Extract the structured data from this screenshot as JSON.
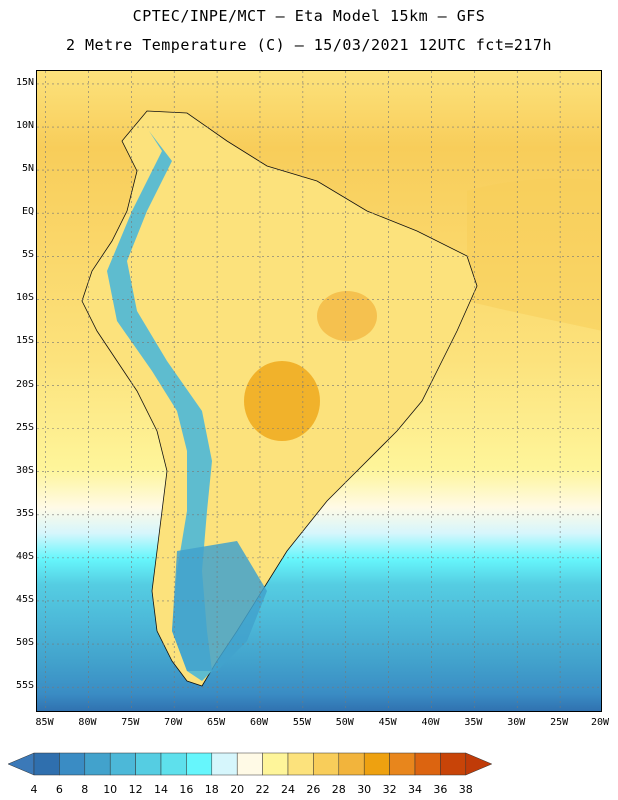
{
  "header": {
    "title_line1": "CPTEC/INPE/MCT –  Eta Model 15km – GFS",
    "title_line2": "2 Metre Temperature (C) – 15/03/2021 12UTC fct=217h"
  },
  "map": {
    "lat_labels": [
      "15N",
      "10N",
      "5N",
      "EQ",
      "5S",
      "10S",
      "15S",
      "20S",
      "25S",
      "30S",
      "35S",
      "40S",
      "45S",
      "50S",
      "55S"
    ],
    "lon_labels": [
      "85W",
      "80W",
      "75W",
      "70W",
      "65W",
      "60W",
      "55W",
      "50W",
      "45W",
      "40W",
      "35W",
      "30W",
      "25W",
      "20W"
    ],
    "lat_values": [
      15,
      10,
      5,
      0,
      -5,
      -10,
      -15,
      -20,
      -25,
      -30,
      -35,
      -40,
      -45,
      -50,
      -55
    ],
    "lon_values": [
      -85,
      -80,
      -75,
      -70,
      -65,
      -60,
      -55,
      -50,
      -45,
      -40,
      -35,
      -30,
      -25,
      -20
    ],
    "lat_range": [
      -58,
      16.5
    ],
    "lon_range": [
      -86,
      -20
    ]
  },
  "colorbar": {
    "labels": [
      "4",
      "6",
      "8",
      "10",
      "12",
      "14",
      "16",
      "18",
      "20",
      "22",
      "24",
      "26",
      "28",
      "30",
      "32",
      "34",
      "36",
      "38"
    ],
    "colors": [
      "#3b79b8",
      "#2f6fae",
      "#3a8cc4",
      "#42a2cc",
      "#4cb8d8",
      "#55cde2",
      "#5ee0ec",
      "#66f6fc",
      "#d6f6fc",
      "#fffae6",
      "#fef59a",
      "#fce27c",
      "#f8cd5a",
      "#f2b43c",
      "#eea110",
      "#e8861c",
      "#dc6410",
      "#c84408",
      "#c03b08"
    ]
  }
}
